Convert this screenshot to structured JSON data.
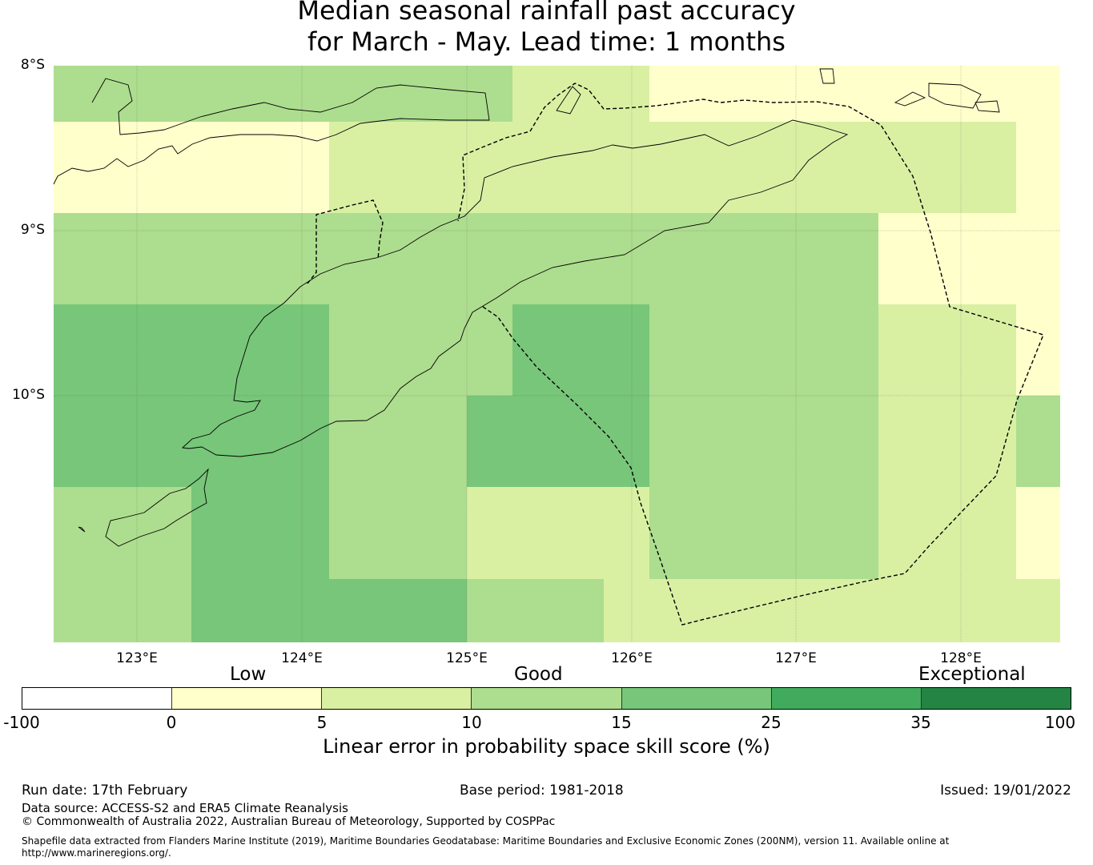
{
  "title": {
    "line1": "Median seasonal rainfall past accuracy",
    "line2": "for March - May. Lead time: 1 months"
  },
  "map": {
    "lat_labels": [
      "8°S",
      "9°S",
      "10°S"
    ],
    "lon_labels": [
      "123°E",
      "124°E",
      "125°E",
      "126°E",
      "127°E",
      "128°E"
    ],
    "extent": {
      "lon_min": 122.5,
      "lon_max": 128.6,
      "lat_max": -8.0,
      "lat_min": -11.5
    },
    "grid_cell_values_pct": [
      [
        10,
        10,
        10,
        10,
        10,
        10,
        10,
        5,
        5,
        0,
        0,
        0,
        0,
        0,
        0
      ],
      [
        0,
        0,
        0,
        0,
        5,
        5,
        5,
        5,
        5,
        5,
        5,
        5,
        5,
        5,
        0
      ],
      [
        10,
        10,
        10,
        10,
        10,
        10,
        10,
        10,
        10,
        10,
        10,
        10,
        0,
        0,
        0
      ],
      [
        15,
        15,
        15,
        15,
        10,
        10,
        10,
        15,
        15,
        10,
        10,
        10,
        5,
        5,
        0
      ],
      [
        15,
        15,
        15,
        15,
        10,
        10,
        15,
        15,
        15,
        10,
        10,
        10,
        5,
        5,
        10
      ],
      [
        10,
        10,
        15,
        15,
        10,
        10,
        5,
        5,
        5,
        10,
        10,
        10,
        5,
        5,
        0
      ],
      [
        10,
        10,
        15,
        15,
        15,
        15,
        10,
        10,
        5,
        5,
        5,
        5,
        5,
        5,
        5
      ]
    ]
  },
  "colorbar": {
    "category_labels": [
      "Low",
      "Good",
      "Exceptional"
    ],
    "tick_labels": [
      "-100",
      "0",
      "5",
      "10",
      "15",
      "25",
      "35",
      "100"
    ],
    "colors": [
      "#ffffff",
      "#ffffcc",
      "#d9f0a3",
      "#addd8e",
      "#78c679",
      "#41ab5d",
      "#238443"
    ],
    "label": "Linear error in probability space skill score (%)"
  },
  "footer": {
    "run_date": "Run date: 17th February",
    "base_period": "Base period: 1981-2018",
    "issued": "Issued: 19/01/2022",
    "data_source": "Data source: ACCESS-S2 and ERA5 Climate Reanalysis",
    "copyright": "© Commonwealth of Australia 2022, Australian Bureau of Meteorology, Supported by COSPPac",
    "shapefile": "Shapefile data extracted from Flanders Marine Institute (2019), Maritime Boundaries Geodatabase: Maritime Boundaries and Exclusive Economic Zones (200NM), version 11. Available online at http://www.marineregions.org/."
  }
}
